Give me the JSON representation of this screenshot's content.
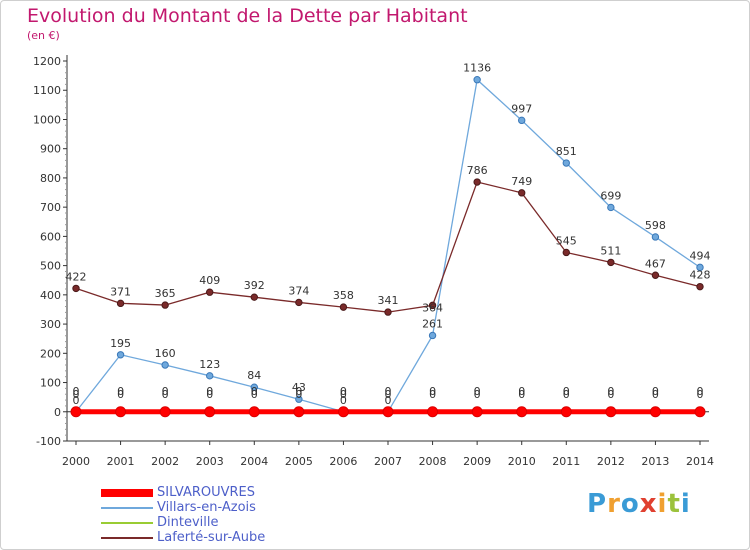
{
  "title": "Evolution du Montant de la Dette par Habitant",
  "subtitle": "(en €)",
  "logo": {
    "text": "Proxiti",
    "colors": [
      "#3a9bd6",
      "#f0a030",
      "#3a9bd6",
      "#e04030",
      "#f0a030",
      "#9cc23c",
      "#3a9bd6"
    ]
  },
  "chart_data": {
    "type": "line",
    "title": "Evolution du Montant de la Dette par Habitant",
    "ylabel": "(en €)",
    "x": [
      2000,
      2001,
      2002,
      2003,
      2004,
      2005,
      2006,
      2007,
      2008,
      2009,
      2010,
      2011,
      2012,
      2013,
      2014
    ],
    "ylim": [
      -100,
      1200
    ],
    "yticks": [
      -100,
      0,
      100,
      200,
      300,
      400,
      500,
      600,
      700,
      800,
      900,
      1000,
      1100,
      1200
    ],
    "grid": false,
    "legend": "bottom-left",
    "series": [
      {
        "name": "SILVAROUVRES",
        "color": "#ff0000",
        "values": [
          0,
          0,
          0,
          0,
          0,
          0,
          0,
          0,
          0,
          0,
          0,
          0,
          0,
          0,
          0
        ]
      },
      {
        "name": "Villars-en-Azois",
        "color": "#6fa8dc",
        "values": [
          0,
          195,
          160,
          123,
          84,
          43,
          0,
          0,
          261,
          1136,
          997,
          851,
          699,
          598,
          494
        ]
      },
      {
        "name": "Dinteville",
        "color": "#99cc33",
        "values": [
          0,
          0,
          0,
          0,
          0,
          0,
          0,
          0,
          0,
          0,
          0,
          0,
          0,
          0,
          0
        ]
      },
      {
        "name": "Laferté-sur-Aube",
        "color": "#7a2a2a",
        "values": [
          422,
          371,
          365,
          409,
          392,
          374,
          358,
          341,
          364,
          786,
          749,
          545,
          511,
          467,
          428
        ]
      }
    ],
    "data_labels": [
      [
        "0",
        "0",
        "0",
        "0",
        "0",
        "0",
        "0",
        "0",
        "0",
        "0",
        "0",
        "0",
        "0",
        "0",
        "0"
      ],
      [
        "0",
        "195",
        "160",
        "123",
        "84",
        "43",
        "0",
        "0",
        "261",
        "1136",
        "997",
        "851",
        "699",
        "598",
        "494"
      ],
      [
        "0",
        "0",
        "0",
        "0",
        "0",
        "0",
        "0",
        "0",
        "0",
        "0",
        "0",
        "0",
        "0",
        "0",
        "0"
      ],
      [
        "422",
        "371",
        "365",
        "409",
        "392",
        "374",
        "358",
        "341",
        "364",
        "786",
        "749",
        "545",
        "511",
        "467",
        "428"
      ]
    ]
  }
}
